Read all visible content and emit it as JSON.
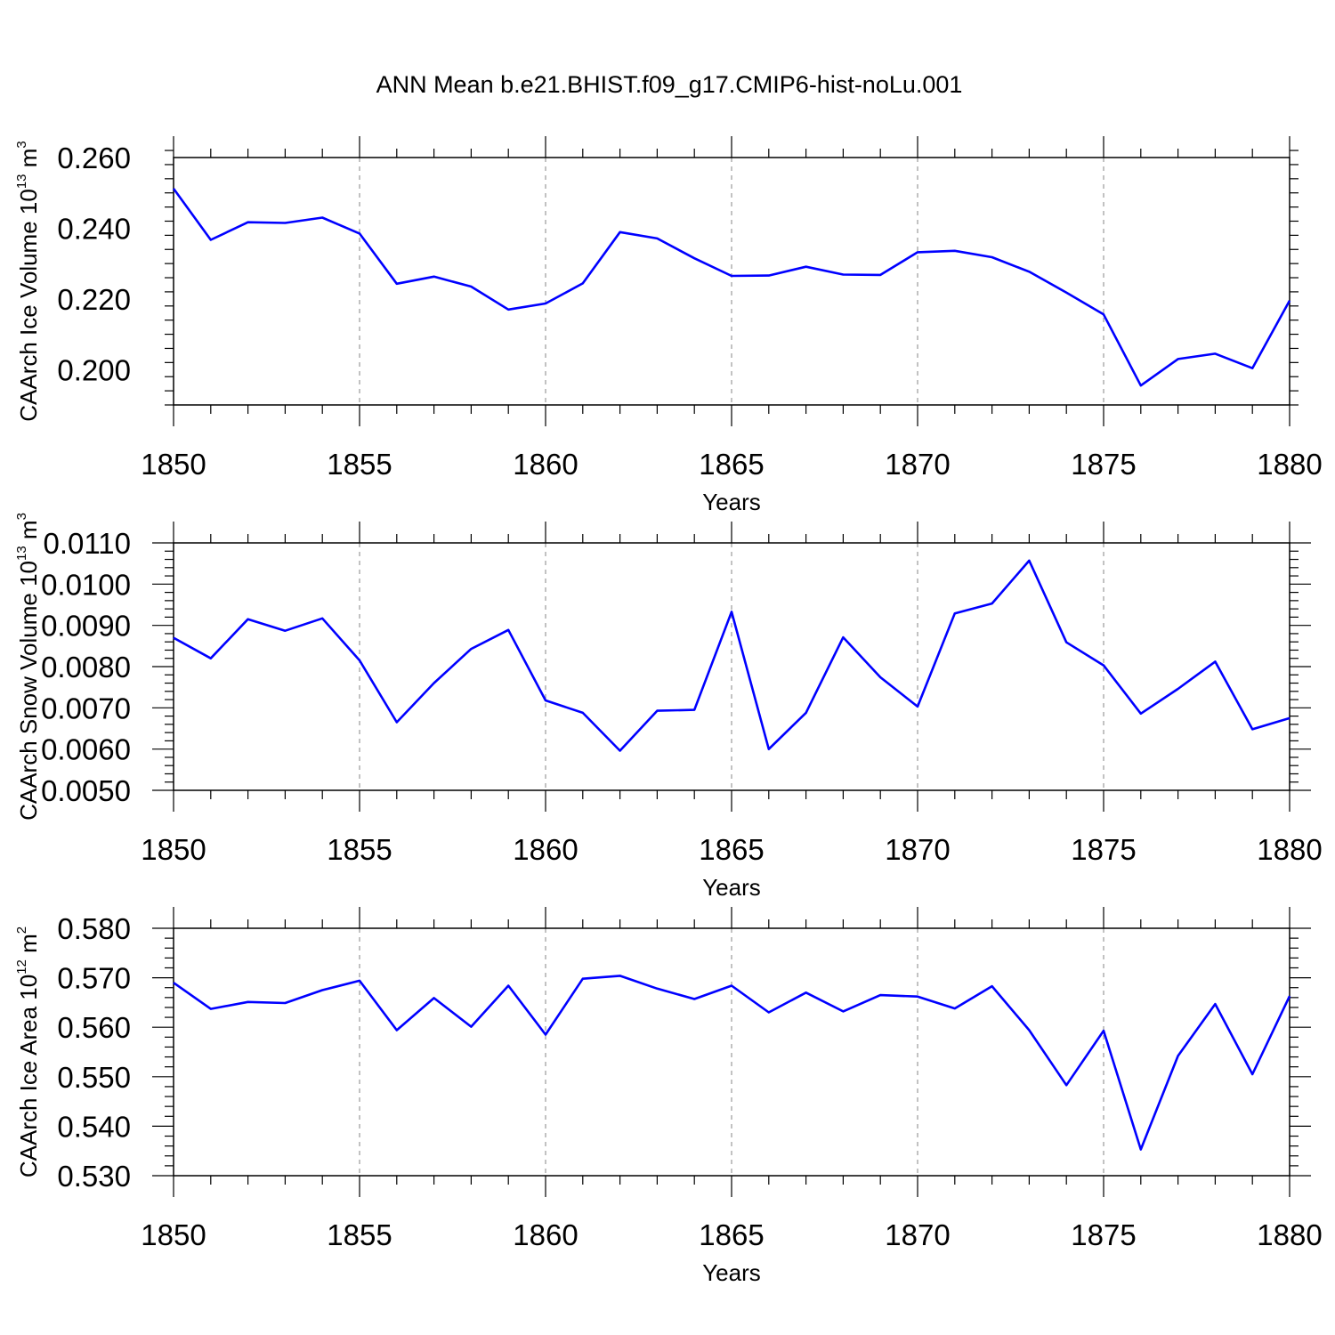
{
  "title": "ANN Mean b.e21.BHIST.f09_g17.CMIP6-hist-noLu.001",
  "line_color": "#0000ff",
  "chart_data": [
    {
      "type": "line",
      "xlabel": "Years",
      "ylabel": {
        "base": "CAArch Ice Volume 10",
        "exp": "13",
        "unit": " m",
        "unit_exp": "3"
      },
      "xlim": [
        1850,
        1880
      ],
      "ylim": [
        0.19,
        0.26
      ],
      "xticks": [
        "1850",
        "1855",
        "1860",
        "1865",
        "1870",
        "1875",
        "1880"
      ],
      "yticks": [
        "0.200",
        "0.220",
        "0.240",
        "0.260"
      ],
      "x": [
        1850,
        1851,
        1852,
        1853,
        1854,
        1855,
        1856,
        1857,
        1858,
        1859,
        1860,
        1861,
        1862,
        1863,
        1864,
        1865,
        1866,
        1867,
        1868,
        1869,
        1870,
        1871,
        1872,
        1873,
        1874,
        1875,
        1876,
        1877,
        1878,
        1879,
        1880
      ],
      "y": [
        0.2512,
        0.2367,
        0.2417,
        0.2415,
        0.243,
        0.2385,
        0.2243,
        0.2263,
        0.2235,
        0.217,
        0.2187,
        0.2244,
        0.2389,
        0.2371,
        0.2315,
        0.2265,
        0.2266,
        0.2291,
        0.2269,
        0.2268,
        0.2332,
        0.2336,
        0.2318,
        0.2277,
        0.2218,
        0.2156,
        0.1955,
        0.203,
        0.2045,
        0.2004,
        0.2195
      ]
    },
    {
      "type": "line",
      "xlabel": "Years",
      "ylabel": {
        "base": "CAArch Snow Volume 10",
        "exp": "13",
        "unit": " m",
        "unit_exp": "3"
      },
      "xlim": [
        1850,
        1880
      ],
      "ylim": [
        0.005,
        0.011
      ],
      "xticks": [
        "1850",
        "1855",
        "1860",
        "1865",
        "1870",
        "1875",
        "1880"
      ],
      "yticks": [
        "0.0050",
        "0.0060",
        "0.0070",
        "0.0080",
        "0.0090",
        "0.0100",
        "0.0110"
      ],
      "x": [
        1850,
        1851,
        1852,
        1853,
        1854,
        1855,
        1856,
        1857,
        1858,
        1859,
        1860,
        1861,
        1862,
        1863,
        1864,
        1865,
        1866,
        1867,
        1868,
        1869,
        1870,
        1871,
        1872,
        1873,
        1874,
        1875,
        1876,
        1877,
        1878,
        1879,
        1880
      ],
      "y": [
        0.0087,
        0.0082,
        0.00915,
        0.00887,
        0.00917,
        0.00815,
        0.00665,
        0.0076,
        0.00843,
        0.00889,
        0.00718,
        0.00688,
        0.00596,
        0.00693,
        0.00695,
        0.00933,
        0.006,
        0.00688,
        0.00871,
        0.00774,
        0.00703,
        0.00929,
        0.00953,
        0.01057,
        0.00859,
        0.00803,
        0.00686,
        0.00746,
        0.00812,
        0.00648,
        0.00675
      ]
    },
    {
      "type": "line",
      "xlabel": "Years",
      "ylabel": {
        "base": "CAArch Ice Area 10",
        "exp": "12",
        "unit": " m",
        "unit_exp": "2"
      },
      "xlim": [
        1850,
        1880
      ],
      "ylim": [
        0.53,
        0.58
      ],
      "xticks": [
        "1850",
        "1855",
        "1860",
        "1865",
        "1870",
        "1875",
        "1880"
      ],
      "yticks": [
        "0.530",
        "0.540",
        "0.550",
        "0.560",
        "0.570",
        "0.580"
      ],
      "x": [
        1850,
        1851,
        1852,
        1853,
        1854,
        1855,
        1856,
        1857,
        1858,
        1859,
        1860,
        1861,
        1862,
        1863,
        1864,
        1865,
        1866,
        1867,
        1868,
        1869,
        1870,
        1871,
        1872,
        1873,
        1874,
        1875,
        1876,
        1877,
        1878,
        1879,
        1880
      ],
      "y": [
        0.569,
        0.5637,
        0.5651,
        0.5649,
        0.5675,
        0.5694,
        0.5594,
        0.5659,
        0.5601,
        0.5684,
        0.5585,
        0.5698,
        0.5704,
        0.5678,
        0.5657,
        0.5684,
        0.563,
        0.567,
        0.5632,
        0.5665,
        0.5662,
        0.5638,
        0.5683,
        0.5594,
        0.5483,
        0.5593,
        0.5353,
        0.5542,
        0.5647,
        0.5505,
        0.5663
      ]
    }
  ]
}
